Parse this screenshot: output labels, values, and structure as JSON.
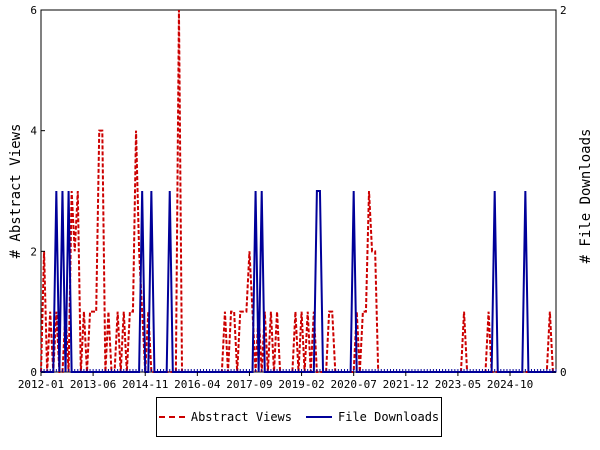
{
  "chart_data": {
    "type": "line",
    "title": "",
    "ylabel_left": "# Abstract Views",
    "ylabel_right": "# File Downloads",
    "ylim_left": [
      0,
      6
    ],
    "ylim_right": [
      0,
      2
    ],
    "yticks_left": [
      "0",
      "2",
      "4",
      "6"
    ],
    "yticks_right": [
      "0",
      "2"
    ],
    "x_tick_labels": [
      "2012-01",
      "2013-06",
      "2014-11",
      "2016-04",
      "2017-09",
      "2019-02",
      "2020-07",
      "2021-12",
      "2023-05",
      "2024-10"
    ],
    "x_index_range": [
      0,
      168
    ],
    "x_tick_index_start": 0,
    "x_tick_index_step": 17,
    "grid": false,
    "legend_position": "bottom",
    "series": [
      {
        "name": "Abstract Views",
        "color": "#cc0000",
        "style": "dashed",
        "axis": "left",
        "points": [
          [
            0,
            0
          ],
          [
            1,
            2
          ],
          [
            2,
            0
          ],
          [
            3,
            1
          ],
          [
            4,
            0
          ],
          [
            5,
            1
          ],
          [
            6,
            0
          ],
          [
            7,
            0
          ],
          [
            8,
            1
          ],
          [
            9,
            0
          ],
          [
            10,
            3
          ],
          [
            11,
            2
          ],
          [
            12,
            3
          ],
          [
            13,
            0
          ],
          [
            14,
            1
          ],
          [
            15,
            0
          ],
          [
            16,
            1
          ],
          [
            17,
            1
          ],
          [
            18,
            1
          ],
          [
            19,
            4
          ],
          [
            20,
            4
          ],
          [
            21,
            0
          ],
          [
            22,
            1
          ],
          [
            23,
            0
          ],
          [
            24,
            0
          ],
          [
            25,
            1
          ],
          [
            26,
            0
          ],
          [
            27,
            1
          ],
          [
            28,
            0
          ],
          [
            29,
            1
          ],
          [
            30,
            1
          ],
          [
            31,
            4
          ],
          [
            32,
            2
          ],
          [
            33,
            1
          ],
          [
            34,
            0
          ],
          [
            35,
            1
          ],
          [
            36,
            0
          ],
          [
            37,
            0
          ],
          [
            38,
            0
          ],
          [
            39,
            0
          ],
          [
            40,
            0
          ],
          [
            41,
            0
          ],
          [
            42,
            0
          ],
          [
            43,
            0
          ],
          [
            44,
            0
          ],
          [
            45,
            6
          ],
          [
            46,
            0
          ],
          [
            47,
            0
          ],
          [
            48,
            0
          ],
          [
            49,
            0
          ],
          [
            50,
            0
          ],
          [
            51,
            0
          ],
          [
            52,
            0
          ],
          [
            53,
            0
          ],
          [
            54,
            0
          ],
          [
            55,
            0
          ],
          [
            56,
            0
          ],
          [
            57,
            0
          ],
          [
            58,
            0
          ],
          [
            59,
            0
          ],
          [
            60,
            1
          ],
          [
            61,
            0
          ],
          [
            62,
            1
          ],
          [
            63,
            1
          ],
          [
            64,
            0
          ],
          [
            65,
            1
          ],
          [
            66,
            1
          ],
          [
            67,
            1
          ],
          [
            68,
            2
          ],
          [
            69,
            1
          ],
          [
            70,
            0
          ],
          [
            71,
            1
          ],
          [
            72,
            0
          ],
          [
            73,
            1
          ],
          [
            74,
            0
          ],
          [
            75,
            1
          ],
          [
            76,
            0
          ],
          [
            77,
            1
          ],
          [
            78,
            0
          ],
          [
            79,
            0
          ],
          [
            80,
            0
          ],
          [
            81,
            0
          ],
          [
            82,
            0
          ],
          [
            83,
            1
          ],
          [
            84,
            0
          ],
          [
            85,
            1
          ],
          [
            86,
            0
          ],
          [
            87,
            1
          ],
          [
            88,
            0
          ],
          [
            89,
            1
          ],
          [
            90,
            0
          ],
          [
            91,
            0
          ],
          [
            92,
            0
          ],
          [
            93,
            0
          ],
          [
            94,
            1
          ],
          [
            95,
            1
          ],
          [
            96,
            0
          ],
          [
            97,
            0
          ],
          [
            98,
            0
          ],
          [
            99,
            0
          ],
          [
            100,
            0
          ],
          [
            101,
            0
          ],
          [
            102,
            0
          ],
          [
            103,
            1
          ],
          [
            104,
            0
          ],
          [
            105,
            1
          ],
          [
            106,
            1
          ],
          [
            107,
            3
          ],
          [
            108,
            2
          ],
          [
            109,
            2
          ],
          [
            110,
            0
          ],
          [
            111,
            0
          ],
          [
            112,
            0
          ],
          [
            113,
            0
          ],
          [
            114,
            0
          ],
          [
            115,
            0
          ],
          [
            116,
            0
          ],
          [
            117,
            0
          ],
          [
            118,
            0
          ],
          [
            119,
            0
          ],
          [
            120,
            0
          ],
          [
            121,
            0
          ],
          [
            122,
            0
          ],
          [
            123,
            0
          ],
          [
            124,
            0
          ],
          [
            125,
            0
          ],
          [
            126,
            0
          ],
          [
            127,
            0
          ],
          [
            128,
            0
          ],
          [
            129,
            0
          ],
          [
            130,
            0
          ],
          [
            131,
            0
          ],
          [
            132,
            0
          ],
          [
            133,
            0
          ],
          [
            134,
            0
          ],
          [
            135,
            0
          ],
          [
            136,
            0
          ],
          [
            137,
            0
          ],
          [
            138,
            1
          ],
          [
            139,
            0
          ],
          [
            140,
            0
          ],
          [
            141,
            0
          ],
          [
            142,
            0
          ],
          [
            143,
            0
          ],
          [
            144,
            0
          ],
          [
            145,
            0
          ],
          [
            146,
            1
          ],
          [
            147,
            0
          ],
          [
            148,
            0
          ],
          [
            149,
            0
          ],
          [
            150,
            0
          ],
          [
            151,
            0
          ],
          [
            152,
            0
          ],
          [
            153,
            0
          ],
          [
            154,
            0
          ],
          [
            155,
            0
          ],
          [
            156,
            0
          ],
          [
            157,
            0
          ],
          [
            158,
            0
          ],
          [
            159,
            0
          ],
          [
            160,
            0
          ],
          [
            161,
            0
          ],
          [
            162,
            0
          ],
          [
            163,
            0
          ],
          [
            164,
            0
          ],
          [
            165,
            0
          ],
          [
            166,
            1
          ],
          [
            167,
            0
          ],
          [
            168,
            0
          ]
        ]
      },
      {
        "name": "File Downloads",
        "color": "#000099",
        "style": "solid",
        "axis": "right",
        "points": [
          [
            0,
            0
          ],
          [
            1,
            0
          ],
          [
            2,
            0
          ],
          [
            3,
            0
          ],
          [
            4,
            0
          ],
          [
            5,
            1
          ],
          [
            6,
            0
          ],
          [
            7,
            1
          ],
          [
            8,
            0
          ],
          [
            9,
            1
          ],
          [
            10,
            0
          ],
          [
            11,
            0
          ],
          [
            12,
            0
          ],
          [
            13,
            0
          ],
          [
            14,
            0
          ],
          [
            15,
            0
          ],
          [
            16,
            0
          ],
          [
            17,
            0
          ],
          [
            18,
            0
          ],
          [
            19,
            0
          ],
          [
            20,
            0
          ],
          [
            21,
            0
          ],
          [
            22,
            0
          ],
          [
            23,
            0
          ],
          [
            24,
            0
          ],
          [
            25,
            0
          ],
          [
            26,
            0
          ],
          [
            27,
            0
          ],
          [
            28,
            0
          ],
          [
            29,
            0
          ],
          [
            30,
            0
          ],
          [
            31,
            0
          ],
          [
            32,
            0
          ],
          [
            33,
            1
          ],
          [
            34,
            0
          ],
          [
            35,
            0
          ],
          [
            36,
            1
          ],
          [
            37,
            0
          ],
          [
            38,
            0
          ],
          [
            39,
            0
          ],
          [
            40,
            0
          ],
          [
            41,
            0
          ],
          [
            42,
            1
          ],
          [
            43,
            0
          ],
          [
            44,
            0
          ],
          [
            45,
            0
          ],
          [
            46,
            0
          ],
          [
            47,
            0
          ],
          [
            48,
            0
          ],
          [
            49,
            0
          ],
          [
            50,
            0
          ],
          [
            51,
            0
          ],
          [
            52,
            0
          ],
          [
            53,
            0
          ],
          [
            54,
            0
          ],
          [
            55,
            0
          ],
          [
            56,
            0
          ],
          [
            57,
            0
          ],
          [
            58,
            0
          ],
          [
            59,
            0
          ],
          [
            60,
            0
          ],
          [
            61,
            0
          ],
          [
            62,
            0
          ],
          [
            63,
            0
          ],
          [
            64,
            0
          ],
          [
            65,
            0
          ],
          [
            66,
            0
          ],
          [
            67,
            0
          ],
          [
            68,
            0
          ],
          [
            69,
            0
          ],
          [
            70,
            1
          ],
          [
            71,
            0
          ],
          [
            72,
            1
          ],
          [
            73,
            0
          ],
          [
            74,
            0
          ],
          [
            75,
            0
          ],
          [
            76,
            0
          ],
          [
            77,
            0
          ],
          [
            78,
            0
          ],
          [
            79,
            0
          ],
          [
            80,
            0
          ],
          [
            81,
            0
          ],
          [
            82,
            0
          ],
          [
            83,
            0
          ],
          [
            84,
            0
          ],
          [
            85,
            0
          ],
          [
            86,
            0
          ],
          [
            87,
            0
          ],
          [
            88,
            0
          ],
          [
            89,
            0
          ],
          [
            90,
            1
          ],
          [
            91,
            1
          ],
          [
            92,
            0
          ],
          [
            93,
            0
          ],
          [
            94,
            0
          ],
          [
            95,
            0
          ],
          [
            96,
            0
          ],
          [
            97,
            0
          ],
          [
            98,
            0
          ],
          [
            99,
            0
          ],
          [
            100,
            0
          ],
          [
            101,
            0
          ],
          [
            102,
            1
          ],
          [
            103,
            0
          ],
          [
            104,
            0
          ],
          [
            105,
            0
          ],
          [
            106,
            0
          ],
          [
            107,
            0
          ],
          [
            108,
            0
          ],
          [
            109,
            0
          ],
          [
            110,
            0
          ],
          [
            111,
            0
          ],
          [
            112,
            0
          ],
          [
            113,
            0
          ],
          [
            114,
            0
          ],
          [
            115,
            0
          ],
          [
            116,
            0
          ],
          [
            117,
            0
          ],
          [
            118,
            0
          ],
          [
            119,
            0
          ],
          [
            120,
            0
          ],
          [
            121,
            0
          ],
          [
            122,
            0
          ],
          [
            123,
            0
          ],
          [
            124,
            0
          ],
          [
            125,
            0
          ],
          [
            126,
            0
          ],
          [
            127,
            0
          ],
          [
            128,
            0
          ],
          [
            129,
            0
          ],
          [
            130,
            0
          ],
          [
            131,
            0
          ],
          [
            132,
            0
          ],
          [
            133,
            0
          ],
          [
            134,
            0
          ],
          [
            135,
            0
          ],
          [
            136,
            0
          ],
          [
            137,
            0
          ],
          [
            138,
            0
          ],
          [
            139,
            0
          ],
          [
            140,
            0
          ],
          [
            141,
            0
          ],
          [
            142,
            0
          ],
          [
            143,
            0
          ],
          [
            144,
            0
          ],
          [
            145,
            0
          ],
          [
            146,
            0
          ],
          [
            147,
            0
          ],
          [
            148,
            1
          ],
          [
            149,
            0
          ],
          [
            150,
            0
          ],
          [
            151,
            0
          ],
          [
            152,
            0
          ],
          [
            153,
            0
          ],
          [
            154,
            0
          ],
          [
            155,
            0
          ],
          [
            156,
            0
          ],
          [
            157,
            0
          ],
          [
            158,
            1
          ],
          [
            159,
            0
          ],
          [
            160,
            0
          ],
          [
            161,
            0
          ],
          [
            162,
            0
          ],
          [
            163,
            0
          ],
          [
            164,
            0
          ],
          [
            165,
            0
          ],
          [
            166,
            0
          ],
          [
            167,
            0
          ],
          [
            168,
            0
          ]
        ]
      }
    ]
  }
}
